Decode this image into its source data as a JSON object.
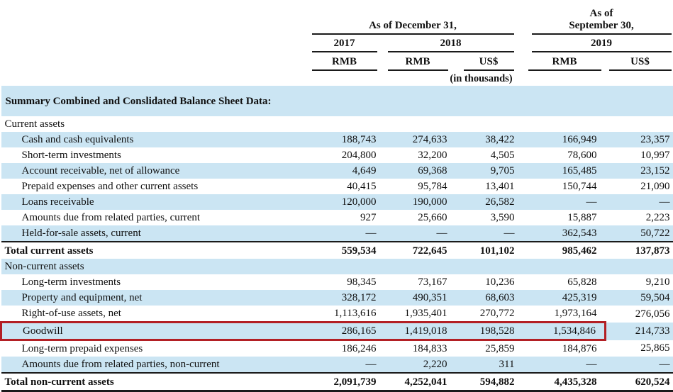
{
  "colors": {
    "row_stripe": "#cbe5f3",
    "highlight_border": "#b32025",
    "rule": "#1a1a1a"
  },
  "header": {
    "group_december": "As of December 31,",
    "group_september_line1": "As of",
    "group_september_line2": "September 30,",
    "years": [
      "2017",
      "2018",
      "2019"
    ],
    "currencies": [
      "RMB",
      "RMB",
      "US$",
      "RMB",
      "US$"
    ],
    "unit_note": "(in thousands)"
  },
  "rows": [
    {
      "label": "Summary Combined and Conslidated Balance Sheet Data:",
      "type": "title",
      "shaded": true,
      "highlighted": false,
      "values": [
        "",
        "",
        "",
        "",
        ""
      ]
    },
    {
      "label": "Current assets",
      "type": "section",
      "shaded": false,
      "highlighted": false,
      "values": [
        "",
        "",
        "",
        "",
        ""
      ]
    },
    {
      "label": "Cash and cash equivalents",
      "type": "item",
      "shaded": true,
      "highlighted": false,
      "values": [
        "188,743",
        "274,633",
        "38,422",
        "166,949",
        "23,357"
      ]
    },
    {
      "label": "Short-term investments",
      "type": "item",
      "shaded": false,
      "highlighted": false,
      "values": [
        "204,800",
        "32,200",
        "4,505",
        "78,600",
        "10,997"
      ]
    },
    {
      "label": "Account receivable, net of allowance",
      "type": "item",
      "shaded": true,
      "highlighted": false,
      "values": [
        "4,649",
        "69,368",
        "9,705",
        "165,485",
        "23,152"
      ]
    },
    {
      "label": "Prepaid expenses and other current assets",
      "type": "item",
      "shaded": false,
      "highlighted": false,
      "values": [
        "40,415",
        "95,784",
        "13,401",
        "150,744",
        "21,090"
      ]
    },
    {
      "label": "Loans receivable",
      "type": "item",
      "shaded": true,
      "highlighted": false,
      "values": [
        "120,000",
        "190,000",
        "26,582",
        "—",
        "—"
      ]
    },
    {
      "label": "Amounts due from related parties, current",
      "type": "item",
      "shaded": false,
      "highlighted": false,
      "values": [
        "927",
        "25,660",
        "3,590",
        "15,887",
        "2,223"
      ]
    },
    {
      "label": "Held-for-sale assets, current",
      "type": "item",
      "shaded": true,
      "highlighted": false,
      "values": [
        "—",
        "—",
        "—",
        "362,543",
        "50,722"
      ]
    },
    {
      "label": "Total current assets",
      "type": "total",
      "shaded": false,
      "highlighted": false,
      "values": [
        "559,534",
        "722,645",
        "101,102",
        "985,462",
        "137,873"
      ]
    },
    {
      "label": "Non-current assets",
      "type": "section",
      "shaded": true,
      "highlighted": false,
      "values": [
        "",
        "",
        "",
        "",
        ""
      ]
    },
    {
      "label": "Long-term investments",
      "type": "item",
      "shaded": false,
      "highlighted": false,
      "values": [
        "98,345",
        "73,167",
        "10,236",
        "65,828",
        "9,210"
      ]
    },
    {
      "label": "Property and equipment, net",
      "type": "item",
      "shaded": true,
      "highlighted": false,
      "values": [
        "328,172",
        "490,351",
        "68,603",
        "425,319",
        "59,504"
      ]
    },
    {
      "label": "Right-of-use assets, net",
      "type": "item",
      "shaded": false,
      "highlighted": false,
      "values": [
        "1,113,616",
        "1,935,401",
        "270,772",
        "1,973,164",
        "276,056"
      ]
    },
    {
      "label": "Goodwill",
      "type": "item",
      "shaded": true,
      "highlighted": true,
      "values": [
        "286,165",
        "1,419,018",
        "198,528",
        "1,534,846",
        "214,733"
      ]
    },
    {
      "label": "Long-term prepaid expenses",
      "type": "item",
      "shaded": false,
      "highlighted": false,
      "values": [
        "186,246",
        "184,833",
        "25,859",
        "184,876",
        "25,865"
      ]
    },
    {
      "label": "Amounts due from related parties, non-current",
      "type": "item",
      "shaded": true,
      "highlighted": false,
      "values": [
        "—",
        "2,220",
        "311",
        "—",
        "—"
      ]
    },
    {
      "label": "Total non-current assets",
      "type": "total",
      "shaded": false,
      "highlighted": false,
      "last": true,
      "values": [
        "2,091,739",
        "4,252,041",
        "594,882",
        "4,435,328",
        "620,524"
      ]
    }
  ]
}
